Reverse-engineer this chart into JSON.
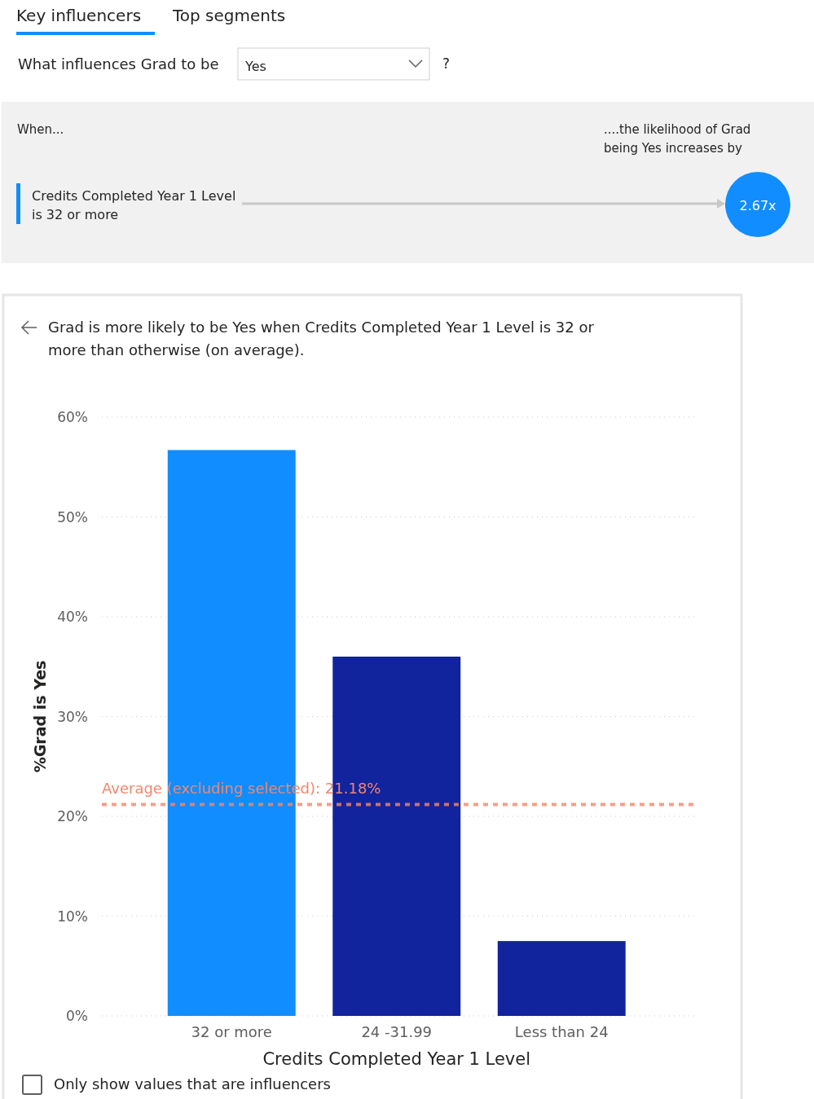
{
  "chart_data": {
    "type": "bar",
    "title": "Grad is more likely to be Yes when Credits Completed Year 1 Level is 32 or more than otherwise (on average).",
    "xlabel": "Credits Completed Year 1 Level",
    "ylabel": "%Grad is Yes",
    "categories": [
      "32 or more",
      "24 -31.99",
      "Less than 24"
    ],
    "values": [
      56.7,
      36,
      7.5
    ],
    "colors": [
      "#118dff",
      "#12239e",
      "#12239e"
    ],
    "ylim": [
      0,
      60
    ],
    "yticks": [
      {
        "value": 0,
        "label": "0%"
      },
      {
        "value": 10,
        "label": "10%"
      },
      {
        "value": 20,
        "label": "20%"
      },
      {
        "value": 30,
        "label": "30%"
      },
      {
        "value": 40,
        "label": "40%"
      },
      {
        "value": 50,
        "label": "50%"
      },
      {
        "value": 60,
        "label": "60%"
      }
    ],
    "grid": "y",
    "ref_lines": [
      {
        "axis": "y",
        "value": 21.18,
        "label": "Average (excluding selected): 21.18%",
        "color": "#f2876c",
        "line_style": "dashed"
      }
    ],
    "annotations": [
      "Key influencers",
      "Top segments",
      "What influences Grad to be",
      "Yes",
      "?",
      "When...",
      "....the likelihood of Grad being Yes increases by",
      "Credits Completed Year 1 Level is 32 or more",
      "2.67x",
      "Only show values that are influencers"
    ]
  }
}
